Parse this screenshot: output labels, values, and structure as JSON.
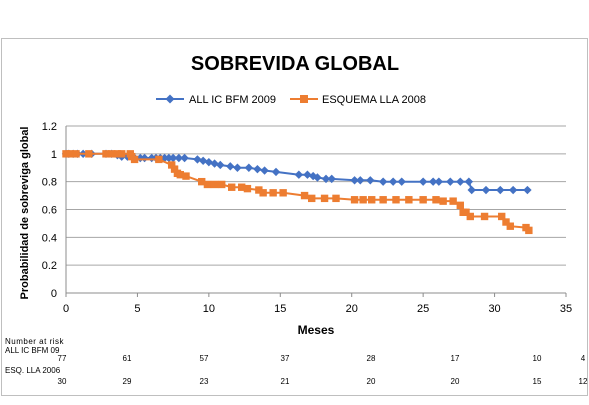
{
  "chart_data": {
    "type": "line",
    "title": "SOBREVIDA GLOBAL",
    "xlabel": "Meses",
    "ylabel": "Probabilidad de sobreviga global",
    "xlim": [
      0,
      35
    ],
    "ylim": [
      0,
      1.2
    ],
    "x_ticks": [
      0,
      5,
      10,
      15,
      20,
      25,
      30,
      35
    ],
    "y_ticks": [
      "0",
      "0.2",
      "0.4",
      "0.6",
      "0.8",
      "1",
      "1.2"
    ],
    "legend_position": "top",
    "grid": "horizontal",
    "series": [
      {
        "name": "ALL IC BFM 2009",
        "color": "#4472c4",
        "marker": "diamond",
        "points": [
          [
            0,
            1
          ],
          [
            0.2,
            1
          ],
          [
            0.5,
            1
          ],
          [
            0.8,
            1
          ],
          [
            1.2,
            1
          ],
          [
            1.8,
            1
          ],
          [
            2.8,
            1
          ],
          [
            3.2,
            1
          ],
          [
            3.6,
            0.99
          ],
          [
            3.9,
            0.98
          ],
          [
            4.3,
            0.98
          ],
          [
            4.8,
            0.97
          ],
          [
            5.2,
            0.97
          ],
          [
            5.5,
            0.97
          ],
          [
            6.0,
            0.97
          ],
          [
            6.3,
            0.97
          ],
          [
            6.6,
            0.97
          ],
          [
            6.9,
            0.97
          ],
          [
            7.2,
            0.97
          ],
          [
            7.5,
            0.97
          ],
          [
            7.9,
            0.97
          ],
          [
            8.3,
            0.97
          ],
          [
            9.2,
            0.96
          ],
          [
            9.6,
            0.95
          ],
          [
            10.0,
            0.94
          ],
          [
            10.4,
            0.93
          ],
          [
            10.8,
            0.92
          ],
          [
            11.5,
            0.91
          ],
          [
            12.0,
            0.9
          ],
          [
            12.8,
            0.9
          ],
          [
            13.4,
            0.89
          ],
          [
            13.9,
            0.88
          ],
          [
            14.7,
            0.87
          ],
          [
            16.3,
            0.85
          ],
          [
            16.9,
            0.85
          ],
          [
            17.3,
            0.84
          ],
          [
            17.6,
            0.83
          ],
          [
            18.2,
            0.82
          ],
          [
            18.6,
            0.82
          ],
          [
            20.2,
            0.81
          ],
          [
            20.6,
            0.81
          ],
          [
            21.3,
            0.81
          ],
          [
            22.2,
            0.8
          ],
          [
            22.9,
            0.8
          ],
          [
            23.5,
            0.8
          ],
          [
            25.0,
            0.8
          ],
          [
            25.7,
            0.8
          ],
          [
            26.1,
            0.8
          ],
          [
            26.9,
            0.8
          ],
          [
            27.6,
            0.8
          ],
          [
            28.2,
            0.8
          ],
          [
            28.4,
            0.74
          ],
          [
            29.4,
            0.74
          ],
          [
            30.4,
            0.74
          ],
          [
            31.3,
            0.74
          ],
          [
            32.3,
            0.74
          ]
        ]
      },
      {
        "name": "ESQUEMA LLA 2008",
        "color": "#ed7d31",
        "marker": "square",
        "points": [
          [
            0,
            1
          ],
          [
            0.3,
            1
          ],
          [
            0.7,
            1
          ],
          [
            1.6,
            1
          ],
          [
            2.8,
            1
          ],
          [
            3.2,
            1
          ],
          [
            3.6,
            1
          ],
          [
            3.9,
            1
          ],
          [
            4.5,
            1
          ],
          [
            4.6,
            0.98
          ],
          [
            4.8,
            0.96
          ],
          [
            6.5,
            0.96
          ],
          [
            7.4,
            0.92
          ],
          [
            7.6,
            0.89
          ],
          [
            7.8,
            0.86
          ],
          [
            8.0,
            0.85
          ],
          [
            8.4,
            0.84
          ],
          [
            9.5,
            0.8
          ],
          [
            9.9,
            0.78
          ],
          [
            10.4,
            0.78
          ],
          [
            10.9,
            0.78
          ],
          [
            11.6,
            0.76
          ],
          [
            12.3,
            0.76
          ],
          [
            12.7,
            0.75
          ],
          [
            13.5,
            0.74
          ],
          [
            13.8,
            0.72
          ],
          [
            14.5,
            0.72
          ],
          [
            15.2,
            0.72
          ],
          [
            16.7,
            0.7
          ],
          [
            17.2,
            0.68
          ],
          [
            18.1,
            0.68
          ],
          [
            18.9,
            0.68
          ],
          [
            20.2,
            0.67
          ],
          [
            20.8,
            0.67
          ],
          [
            21.4,
            0.67
          ],
          [
            22.2,
            0.67
          ],
          [
            23.1,
            0.67
          ],
          [
            24.0,
            0.67
          ],
          [
            25.0,
            0.67
          ],
          [
            25.9,
            0.67
          ],
          [
            26.4,
            0.66
          ],
          [
            27.1,
            0.66
          ],
          [
            27.6,
            0.63
          ],
          [
            27.8,
            0.58
          ],
          [
            28.0,
            0.58
          ],
          [
            28.3,
            0.55
          ],
          [
            29.3,
            0.55
          ],
          [
            30.5,
            0.55
          ],
          [
            30.8,
            0.51
          ],
          [
            31.1,
            0.48
          ],
          [
            32.2,
            0.47
          ],
          [
            32.4,
            0.45
          ]
        ]
      }
    ],
    "risk_table": {
      "title": "Number at risk",
      "rows": [
        {
          "label": "ALL IC BFM 09",
          "values": [
            "77",
            "61",
            "57",
            "37",
            "28",
            "17",
            "10",
            "4"
          ]
        },
        {
          "label": "ESQ. LLA 2006",
          "values": [
            "30",
            "29",
            "23",
            "21",
            "20",
            "20",
            "15",
            "12"
          ]
        }
      ]
    }
  }
}
